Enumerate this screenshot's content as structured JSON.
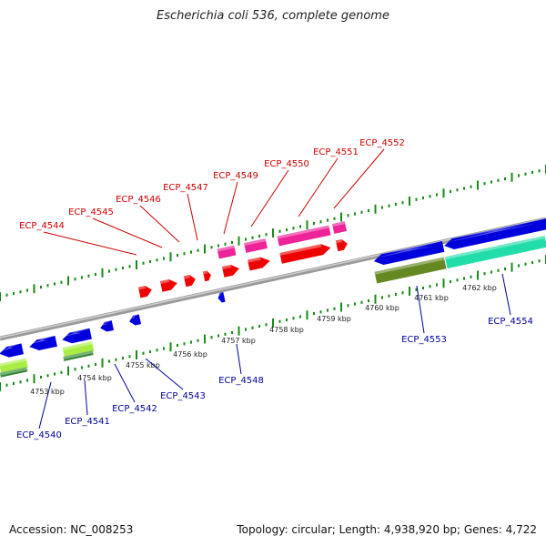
{
  "title": "Escherichia coli 536, complete genome",
  "footer": {
    "accession": "Accession: NC_008253",
    "summary": "Topology: circular; Length: 4,938,920 bp; Genes: 4,722"
  },
  "colors": {
    "backbone": "#888888",
    "tick": "#1a8a1a",
    "forward_label": "#cc0000",
    "reverse_label": "#000099",
    "red_gene": "#ee0000",
    "pink_gene": "#ee2299",
    "blue_gene": "#0000dd",
    "teal_gene": "#22ddaa",
    "olive_gene": "#668822",
    "lime_gene": "#aaee44",
    "green_gene": "#338833"
  },
  "scale_labels": [
    "4753 kbp",
    "4754 kbp",
    "4755 kbp",
    "4756 kbp",
    "4757 kbp",
    "4758 kbp",
    "4759 kbp",
    "4760 kbp",
    "4761 kbp",
    "4762 kbp"
  ],
  "forward_gene_labels": [
    "ECP_4544",
    "ECP_4545",
    "ECP_4546",
    "ECP_4547",
    "ECP_4549",
    "ECP_4550",
    "ECP_4551",
    "ECP_4552"
  ],
  "reverse_gene_labels": [
    "ECP_4540",
    "ECP_4541",
    "ECP_4542",
    "ECP_4543",
    "ECP_4548",
    "ECP_4553",
    "ECP_4554"
  ]
}
